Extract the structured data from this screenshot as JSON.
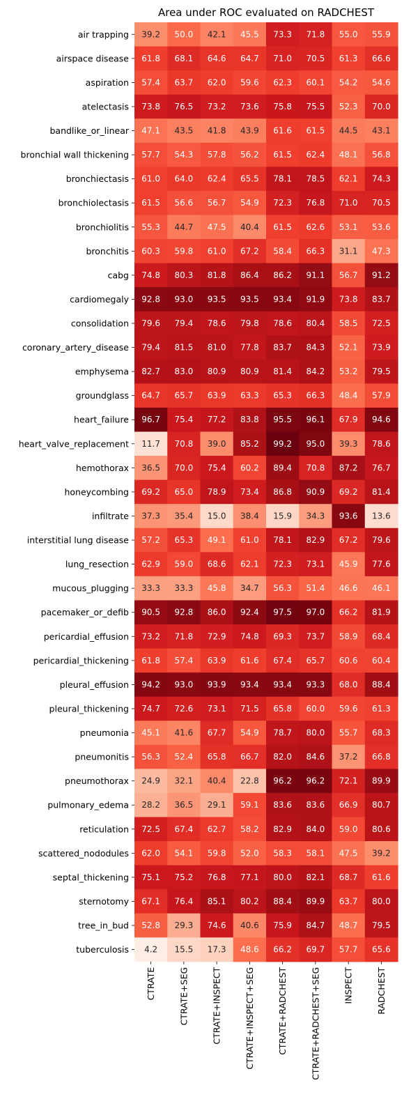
{
  "chart_data": {
    "type": "heatmap",
    "title": "Area under ROC evaluated on RADCHEST",
    "colormap": "Reds",
    "value_range": [
      0,
      100
    ],
    "columns": [
      "CTRATE",
      "CTRATE+SEG",
      "CTRATE+INSPECT",
      "CTRATE+INSPECT+SEG",
      "CTRATE+RADCHEST",
      "CTRATE+RADCHEST+SEG",
      "INSPECT",
      "RADCHEST"
    ],
    "rows": [
      "air trapping",
      "airspace disease",
      "aspiration",
      "atelectasis",
      "bandlike_or_linear",
      "bronchial wall thickening",
      "bronchiectasis",
      "bronchiolectasis",
      "bronchiolitis",
      "bronchitis",
      "cabg",
      "cardiomegaly",
      "consolidation",
      "coronary_artery_disease",
      "emphysema",
      "groundglass",
      "heart_failure",
      "heart_valve_replacement",
      "hemothorax",
      "honeycombing",
      "infiltrate",
      "interstitial lung disease",
      "lung_resection",
      "mucous_plugging",
      "pacemaker_or_defib",
      "pericardial_effusion",
      "pericardial_thickening",
      "pleural_effusion",
      "pleural_thickening",
      "pneumonia",
      "pneumonitis",
      "pneumothorax",
      "pulmonary_edema",
      "reticulation",
      "scattered_nododules",
      "septal_thickening",
      "sternotomy",
      "tree_in_bud",
      "tuberculosis"
    ],
    "values": [
      [
        "39.2",
        "50.0",
        "42.1",
        "45.5",
        "73.3",
        "71.8",
        "55.0",
        "55.9"
      ],
      [
        "61.8",
        "68.1",
        "64.6",
        "64.7",
        "71.0",
        "70.5",
        "61.3",
        "66.6"
      ],
      [
        "57.4",
        "63.7",
        "62.0",
        "59.6",
        "62.3",
        "60.1",
        "54.2",
        "54.6"
      ],
      [
        "73.8",
        "76.5",
        "73.2",
        "73.6",
        "75.8",
        "75.5",
        "52.3",
        "70.0"
      ],
      [
        "47.1",
        "43.5",
        "41.8",
        "43.9",
        "61.6",
        "61.5",
        "44.5",
        "43.1"
      ],
      [
        "57.7",
        "54.3",
        "57.8",
        "56.2",
        "61.5",
        "62.4",
        "48.1",
        "56.8"
      ],
      [
        "61.0",
        "64.0",
        "62.4",
        "65.5",
        "78.1",
        "78.5",
        "62.1",
        "74.3"
      ],
      [
        "61.5",
        "56.6",
        "56.7",
        "54.9",
        "72.3",
        "76.8",
        "71.0",
        "70.5"
      ],
      [
        "55.3",
        "44.7",
        "47.5",
        "40.4",
        "61.5",
        "62.6",
        "53.1",
        "53.6"
      ],
      [
        "60.3",
        "59.8",
        "61.0",
        "67.2",
        "58.4",
        "66.3",
        "31.1",
        "47.3"
      ],
      [
        "74.8",
        "80.3",
        "81.8",
        "86.4",
        "86.2",
        "91.1",
        "56.7",
        "91.2"
      ],
      [
        "92.8",
        "93.0",
        "93.5",
        "93.5",
        "93.4",
        "91.9",
        "73.8",
        "83.7"
      ],
      [
        "79.6",
        "79.4",
        "78.6",
        "79.8",
        "78.6",
        "80.4",
        "58.5",
        "72.5"
      ],
      [
        "79.4",
        "81.5",
        "81.0",
        "77.8",
        "83.7",
        "84.3",
        "52.1",
        "73.9"
      ],
      [
        "82.7",
        "83.0",
        "80.9",
        "80.9",
        "81.4",
        "84.2",
        "53.2",
        "79.5"
      ],
      [
        "64.7",
        "65.7",
        "63.9",
        "63.3",
        "65.3",
        "66.3",
        "48.4",
        "57.9"
      ],
      [
        "96.7",
        "75.4",
        "77.2",
        "83.8",
        "95.5",
        "96.1",
        "67.9",
        "94.6"
      ],
      [
        "11.7",
        "70.8",
        "39.0",
        "85.2",
        "99.2",
        "95.0",
        "39.3",
        "78.6"
      ],
      [
        "36.5",
        "70.0",
        "75.4",
        "60.2",
        "89.4",
        "70.8",
        "87.2",
        "76.7"
      ],
      [
        "69.2",
        "65.0",
        "78.9",
        "73.4",
        "86.8",
        "90.9",
        "69.2",
        "81.4"
      ],
      [
        "37.3",
        "35.4",
        "15.0",
        "38.4",
        "15.9",
        "34.3",
        "93.6",
        "13.6"
      ],
      [
        "57.2",
        "65.3",
        "49.1",
        "61.0",
        "78.1",
        "82.9",
        "67.2",
        "79.6"
      ],
      [
        "62.9",
        "59.0",
        "68.6",
        "62.1",
        "72.3",
        "73.1",
        "45.9",
        "77.6"
      ],
      [
        "33.3",
        "33.3",
        "45.8",
        "34.7",
        "56.3",
        "51.4",
        "46.6",
        "46.1"
      ],
      [
        "90.5",
        "92.8",
        "86.0",
        "92.4",
        "97.5",
        "97.0",
        "66.2",
        "81.9"
      ],
      [
        "73.2",
        "71.8",
        "72.9",
        "74.8",
        "69.3",
        "73.7",
        "58.9",
        "68.4"
      ],
      [
        "61.8",
        "57.4",
        "63.9",
        "61.6",
        "67.4",
        "65.7",
        "60.6",
        "60.4"
      ],
      [
        "94.2",
        "93.0",
        "93.9",
        "93.4",
        "93.4",
        "93.3",
        "68.0",
        "88.4"
      ],
      [
        "74.7",
        "72.6",
        "73.1",
        "71.5",
        "65.8",
        "60.0",
        "59.6",
        "61.3"
      ],
      [
        "45.1",
        "41.6",
        "67.7",
        "54.9",
        "78.7",
        "80.0",
        "55.7",
        "68.3"
      ],
      [
        "56.3",
        "52.4",
        "65.8",
        "66.7",
        "82.0",
        "84.6",
        "37.2",
        "66.8"
      ],
      [
        "24.9",
        "32.1",
        "40.4",
        "22.8",
        "96.2",
        "96.2",
        "72.1",
        "89.9"
      ],
      [
        "28.2",
        "36.5",
        "29.1",
        "59.1",
        "83.6",
        "83.6",
        "66.9",
        "80.7"
      ],
      [
        "72.5",
        "67.4",
        "62.7",
        "58.2",
        "82.9",
        "84.0",
        "59.0",
        "80.6"
      ],
      [
        "62.0",
        "54.1",
        "59.8",
        "52.0",
        "58.3",
        "58.1",
        "47.5",
        "39.2"
      ],
      [
        "75.1",
        "75.2",
        "76.8",
        "77.1",
        "80.0",
        "82.1",
        "68.7",
        "61.6"
      ],
      [
        "67.1",
        "76.4",
        "85.1",
        "80.2",
        "88.4",
        "89.9",
        "63.7",
        "80.0"
      ],
      [
        "52.8",
        "29.3",
        "74.6",
        "40.6",
        "75.9",
        "84.7",
        "48.7",
        "79.5"
      ],
      [
        "4.2",
        "15.5",
        "17.3",
        "48.6",
        "66.2",
        "69.7",
        "57.7",
        "65.6"
      ]
    ]
  }
}
